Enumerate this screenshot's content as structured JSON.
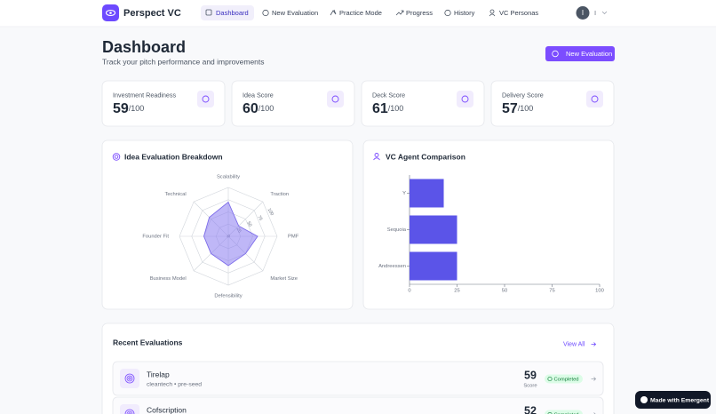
{
  "nav": {
    "brand": "Perspect VC",
    "items": [
      "Dashboard",
      "New Evaluation",
      "Practice Mode",
      "Progress",
      "History",
      "VC Personas"
    ],
    "user_initial": "I",
    "user_name": "I"
  },
  "header": {
    "title": "Dashboard",
    "subtitle": "Track your pitch performance and improvements",
    "button": "New Evaluation"
  },
  "score_cards": [
    {
      "label": "Investment Readiness",
      "value": 59,
      "suffix": "/100"
    },
    {
      "label": "Idea Score",
      "value": 60,
      "suffix": "/100"
    },
    {
      "label": "Deck Score",
      "value": 61,
      "suffix": "/100"
    },
    {
      "label": "Delivery Score",
      "value": 57,
      "suffix": "/100"
    }
  ],
  "chart_data": [
    {
      "type": "radar",
      "title": "Idea Evaluation Breakdown",
      "categories": [
        "Scalability",
        "Traction",
        "PMF",
        "Market Size",
        "Defensibility",
        "Business Model",
        "Founder Fit",
        "Technical"
      ],
      "values": [
        70,
        30,
        60,
        50,
        60,
        50,
        50,
        55
      ],
      "color": "#8b7cf0",
      "rlim": [
        0,
        100
      ],
      "rticks": [
        0,
        25,
        50,
        75,
        100
      ]
    },
    {
      "type": "hbar",
      "title": "VC Agent Comparison",
      "categories": [
        "Y",
        "Sequoia",
        "Andreessen"
      ],
      "values": [
        18,
        25,
        25
      ],
      "color": "#5b54e8",
      "xlim": [
        0,
        100
      ],
      "xticks": [
        0,
        25,
        50,
        75,
        100
      ]
    }
  ],
  "recent": {
    "title": "Recent Evaluations",
    "view_all": "View All",
    "rows": [
      {
        "name": "Tirelap",
        "tags": "cleantech • pre-seed",
        "score": 59,
        "score_label": "Score",
        "status": "Completed"
      },
      {
        "name": "Cofscription",
        "score": 52,
        "status": "Completed"
      }
    ]
  },
  "badge": "Made with Emergent"
}
